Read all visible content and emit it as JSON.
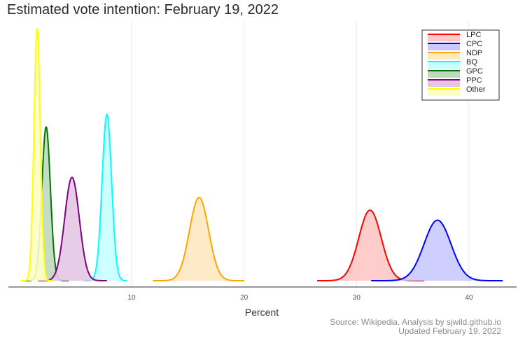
{
  "chart_data": {
    "type": "area",
    "title": "Estimated vote intention: February 19, 2022",
    "xlabel": "Percent",
    "ylabel": "",
    "xlim": [
      0,
      45
    ],
    "x_ticks": [
      10,
      20,
      30,
      40
    ],
    "x_tick_labels": [
      "10",
      "20",
      "30",
      "40"
    ],
    "y_axis_visible": false,
    "grid": "vertical",
    "legend_position": "top-right",
    "series": [
      {
        "name": "LPC",
        "color": "#ff0000",
        "fill": "#ffc7c7",
        "mean": 31.2,
        "sd": 1.0,
        "peak": 0.28,
        "range": [
          26.5,
          36.0
        ]
      },
      {
        "name": "CPC",
        "color": "#0000ff",
        "fill": "#c9c9ff",
        "mean": 37.2,
        "sd": 1.2,
        "peak": 0.24,
        "range": [
          31.3,
          43.0
        ]
      },
      {
        "name": "NDP",
        "color": "#ffa500",
        "fill": "#ffe8c2",
        "mean": 16.0,
        "sd": 0.85,
        "peak": 0.33,
        "range": [
          11.9,
          20.0
        ]
      },
      {
        "name": "BQ",
        "color": "#00ffff",
        "fill": "#c7ffff",
        "mean": 7.8,
        "sd": 0.42,
        "peak": 0.66,
        "range": [
          5.8,
          9.6
        ]
      },
      {
        "name": "GPC",
        "color": "#007700",
        "fill": "#bfd8bf",
        "mean": 2.4,
        "sd": 0.38,
        "peak": 0.61,
        "range": [
          0.5,
          4.4
        ]
      },
      {
        "name": "PPC",
        "color": "#800080",
        "fill": "#e3c7e3",
        "mean": 4.7,
        "sd": 0.65,
        "peak": 0.41,
        "range": [
          1.7,
          7.8
        ]
      },
      {
        "name": "Other",
        "color": "#ffff00",
        "fill": "#ffffc4",
        "mean": 1.6,
        "sd": 0.28,
        "peak": 1.0,
        "range": [
          0.2,
          3.0
        ]
      }
    ],
    "caption_lines": [
      "Source: Wikipedia. Analysis by sjwild.github.io",
      "Updated February 19, 2022"
    ]
  }
}
